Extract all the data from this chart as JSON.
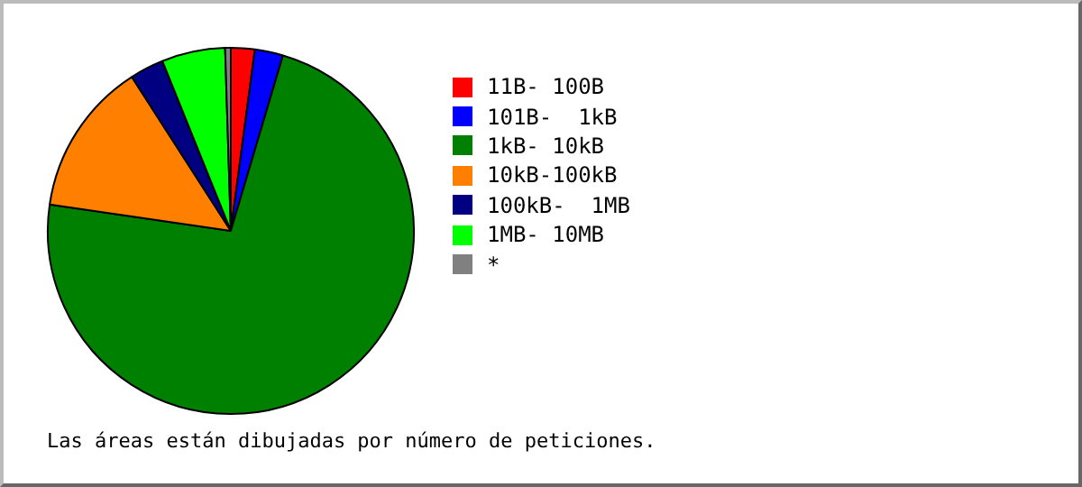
{
  "chart_data": {
    "type": "pie",
    "categories": [
      "11B- 100B",
      "101B-  1kB",
      "1kB- 10kB",
      "10kB-100kB",
      "100kB-  1MB",
      "1MB- 10MB",
      "*"
    ],
    "values": [
      2.1,
      2.5,
      72.7,
      13.6,
      3.0,
      5.6,
      0.5
    ],
    "colors": [
      "#ff0000",
      "#0000ff",
      "#008000",
      "#ff8000",
      "#000080",
      "#00ff00",
      "#808080"
    ],
    "legend": "right",
    "annotations": [
      "Las áreas están dibujadas por número de peticiones."
    ]
  }
}
